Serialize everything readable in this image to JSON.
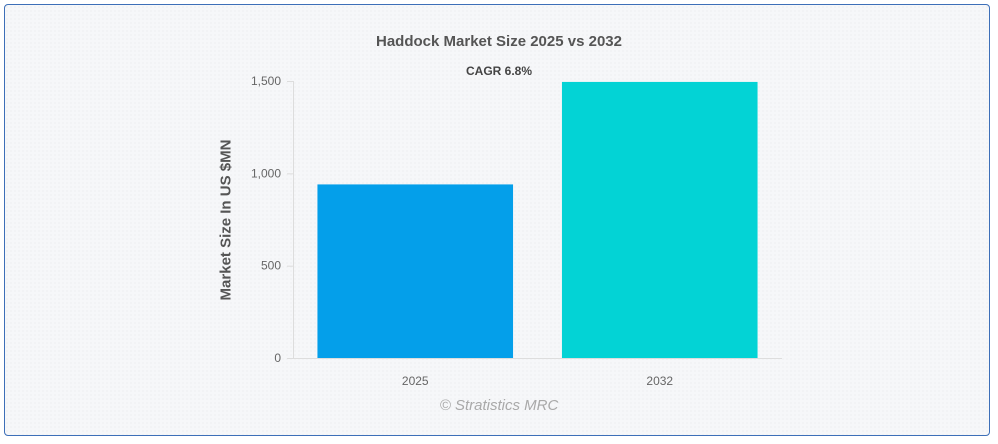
{
  "chart_data": {
    "type": "bar",
    "title": "Haddock Market Size 2025 vs 2032",
    "annotation": "CAGR 6.8%",
    "xlabel": "",
    "ylabel": "Market Size In US $MN",
    "categories": [
      "2025",
      "2032"
    ],
    "values": [
      940,
      1495
    ],
    "colors": [
      "#049fea",
      "#03d3d5"
    ],
    "ylim": [
      0,
      1500
    ],
    "yticks": [
      0,
      500,
      1000,
      1500
    ],
    "ytick_labels": [
      "0",
      "500",
      "1,000",
      "1,500"
    ],
    "grid": false,
    "legend": "none"
  },
  "watermark": "© Stratistics MRC"
}
